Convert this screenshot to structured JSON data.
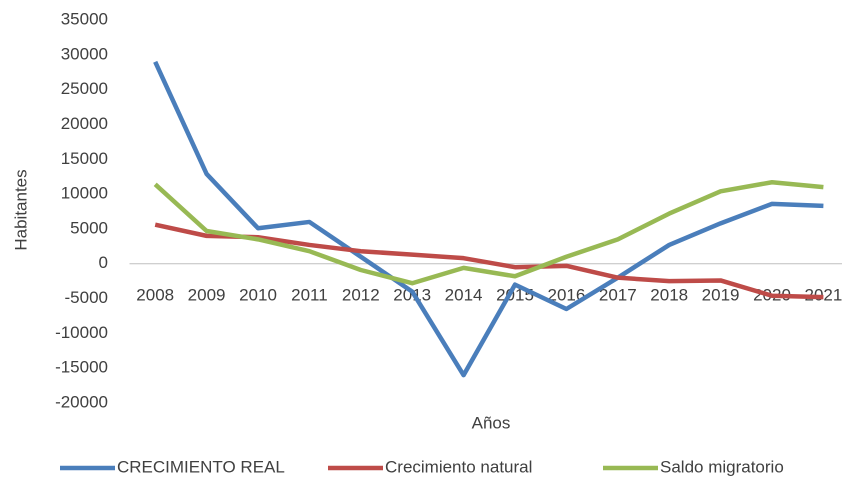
{
  "chart_data": {
    "type": "line",
    "x_label": "Años",
    "y_label": "Habitantes",
    "categories": [
      "2008",
      "2009",
      "2010",
      "2011",
      "2012",
      "2013",
      "2014",
      "2015",
      "2016",
      "2017",
      "2018",
      "2019",
      "2020",
      "2021"
    ],
    "series": [
      {
        "name": "CRECIMIENTO REAL",
        "color": "#4a7ebb",
        "values": [
          29000,
          12900,
          5100,
          6000,
          1000,
          -4000,
          -16000,
          -3000,
          -6500,
          -2000,
          2700,
          5800,
          8600,
          8300
        ]
      },
      {
        "name": "Crecimiento natural",
        "color": "#be4b48",
        "values": [
          5600,
          4000,
          3800,
          2700,
          1800,
          1300,
          800,
          -500,
          -300,
          -2000,
          -2500,
          -2400,
          -4600,
          -4800
        ]
      },
      {
        "name": "Saldo migratorio",
        "color": "#98b954",
        "values": [
          11400,
          4700,
          3500,
          1800,
          -900,
          -2800,
          -600,
          -1800,
          1000,
          3500,
          7200,
          10400,
          11700,
          11000
        ]
      }
    ],
    "ylim": [
      -20000,
      35000
    ],
    "yticks": [
      -20000,
      -15000,
      -10000,
      -5000,
      0,
      5000,
      10000,
      15000,
      20000,
      25000,
      30000,
      35000
    ],
    "grid": false,
    "legend": "bottom"
  }
}
